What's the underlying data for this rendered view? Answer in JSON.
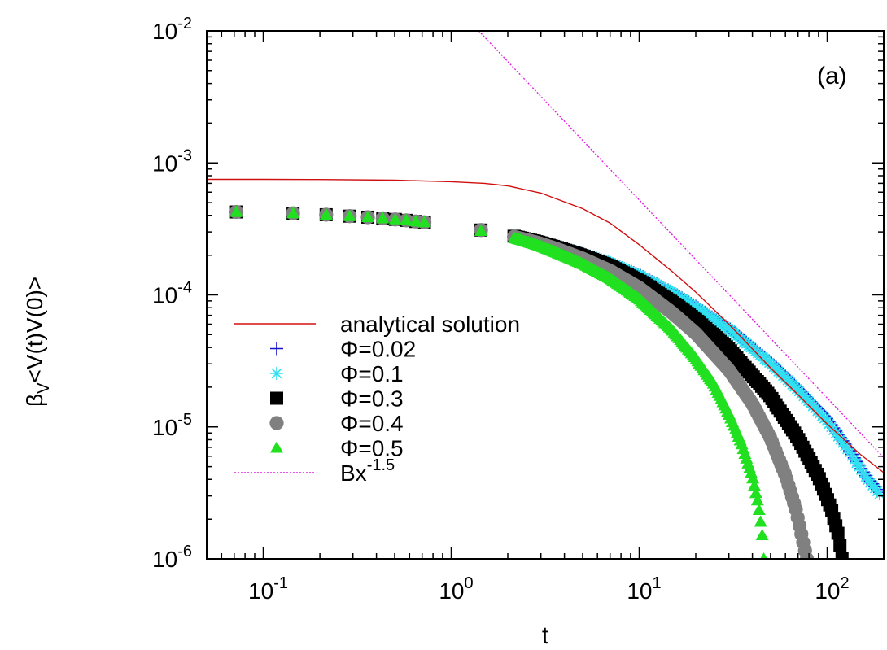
{
  "chart_data": {
    "type": "scatter",
    "scale": {
      "x": "log",
      "y": "log"
    },
    "xlim": [
      0.05,
      200
    ],
    "ylim": [
      1e-06,
      0.01
    ],
    "xlabel": "t",
    "ylabel": {
      "base": "β",
      "sub": "V",
      "rest": "<V(t)V(0)>"
    },
    "panel_label": "(a)",
    "x_ticks": [
      {
        "value": 0.1,
        "base": "10",
        "exp": "-1"
      },
      {
        "value": 1,
        "base": "10",
        "exp": "0"
      },
      {
        "value": 10,
        "base": "10",
        "exp": "1"
      },
      {
        "value": 100,
        "base": "10",
        "exp": "2"
      }
    ],
    "y_ticks": [
      {
        "value": 1e-06,
        "base": "10",
        "exp": "-6"
      },
      {
        "value": 1e-05,
        "base": "10",
        "exp": "-5"
      },
      {
        "value": 0.0001,
        "base": "10",
        "exp": "-4"
      },
      {
        "value": 0.001,
        "base": "10",
        "exp": "-3"
      },
      {
        "value": 0.01,
        "base": "10",
        "exp": "-2"
      }
    ],
    "legend_position": "bottom-left",
    "series": [
      {
        "name": "analytical solution",
        "kind": "line",
        "style": "solid",
        "color": "#d01010",
        "x": [
          0.05,
          0.1,
          0.2,
          0.5,
          1,
          1.5,
          2,
          3,
          5,
          7,
          10,
          15,
          20,
          30,
          50,
          70,
          100,
          150,
          200
        ],
        "y": [
          0.00075,
          0.00075,
          0.000748,
          0.00074,
          0.00072,
          0.0007,
          0.00067,
          0.00059,
          0.00045,
          0.00035,
          0.00024,
          0.00015,
          0.000105,
          6e-05,
          2.8e-05,
          1.75e-05,
          1.05e-05,
          6.2e-06,
          4.5e-06
        ]
      },
      {
        "name": "Φ=0.02",
        "kind": "points",
        "marker": "plus",
        "color": "#1515d0",
        "x": [
          0.072,
          0.144,
          0.216,
          0.288,
          0.36,
          0.432,
          0.504,
          0.576,
          0.648,
          0.72,
          1.44,
          2.16,
          2.88,
          3.6,
          5,
          7,
          10,
          15,
          20,
          30,
          50,
          70,
          100,
          130,
          160,
          190
        ],
        "y": [
          0.000425,
          0.000415,
          0.000405,
          0.000395,
          0.000388,
          0.00038,
          0.000373,
          0.000367,
          0.00036,
          0.000355,
          0.00031,
          0.00028,
          0.000255,
          0.000235,
          0.000205,
          0.000175,
          0.000142,
          0.000105,
          8.2e-05,
          5.6e-05,
          3.1e-05,
          1.95e-05,
          1.15e-05,
          6.8e-06,
          4.3e-06,
          3.2e-06
        ]
      },
      {
        "name": "Φ=0.1",
        "kind": "points",
        "marker": "star",
        "color": "#30e0f0",
        "x": [
          0.072,
          0.144,
          0.216,
          0.288,
          0.36,
          0.432,
          0.504,
          0.576,
          0.648,
          0.72,
          1.44,
          2.16,
          2.88,
          3.6,
          5,
          7,
          10,
          15,
          20,
          30,
          50,
          70,
          100,
          130,
          160,
          190
        ],
        "y": [
          0.000425,
          0.000415,
          0.000405,
          0.000395,
          0.000388,
          0.00038,
          0.000373,
          0.000367,
          0.00036,
          0.000355,
          0.00031,
          0.00028,
          0.000255,
          0.000235,
          0.000205,
          0.000175,
          0.00014,
          0.000104,
          8e-05,
          5.5e-05,
          3e-05,
          1.9e-05,
          1.1e-05,
          6.6e-06,
          4.2e-06,
          3.1e-06
        ]
      },
      {
        "name": "Φ=0.3",
        "kind": "points",
        "marker": "square",
        "color": "#000000",
        "x": [
          0.072,
          0.144,
          0.216,
          0.288,
          0.36,
          0.432,
          0.504,
          0.576,
          0.648,
          0.72,
          1.44,
          2.16,
          2.88,
          3.6,
          5,
          7,
          10,
          15,
          20,
          30,
          50,
          70,
          90,
          105,
          115,
          120
        ],
        "y": [
          0.000425,
          0.000415,
          0.000405,
          0.000395,
          0.000388,
          0.00038,
          0.000373,
          0.000367,
          0.00036,
          0.000355,
          0.00031,
          0.000278,
          0.000252,
          0.00023,
          0.000198,
          0.000165,
          0.000128,
          8.8e-05,
          6.5e-05,
          3.9e-05,
          1.7e-05,
          8.2e-06,
          4.2e-06,
          2.4e-06,
          1.5e-06,
          1e-06
        ]
      },
      {
        "name": "Φ=0.4",
        "kind": "points",
        "marker": "circle",
        "color": "#808080",
        "x": [
          0.072,
          0.144,
          0.216,
          0.288,
          0.36,
          0.432,
          0.504,
          0.576,
          0.648,
          0.72,
          1.44,
          2.16,
          2.88,
          3.6,
          5,
          7,
          10,
          15,
          20,
          30,
          40,
          50,
          60,
          68,
          74,
          78
        ],
        "y": [
          0.000425,
          0.000415,
          0.000405,
          0.000395,
          0.000388,
          0.00038,
          0.000373,
          0.000367,
          0.00036,
          0.000355,
          0.00031,
          0.000275,
          0.000248,
          0.000224,
          0.000188,
          0.000152,
          0.000113,
          7.3e-05,
          5.1e-05,
          2.7e-05,
          1.5e-05,
          8.2e-06,
          4.3e-06,
          2.4e-06,
          1.4e-06,
          1e-06
        ]
      },
      {
        "name": "Φ=0.5",
        "kind": "points",
        "marker": "triangle",
        "color": "#20e020",
        "x": [
          0.072,
          0.144,
          0.216,
          0.288,
          0.36,
          0.432,
          0.504,
          0.576,
          0.648,
          0.72,
          1.44,
          2.16,
          2.88,
          3.6,
          5,
          7,
          10,
          15,
          20,
          25,
          30,
          35,
          40,
          43,
          45,
          46
        ],
        "y": [
          0.000425,
          0.000415,
          0.000405,
          0.000395,
          0.000388,
          0.00038,
          0.000373,
          0.000367,
          0.00036,
          0.000355,
          0.000305,
          0.00027,
          0.000238,
          0.00021,
          0.000172,
          0.000133,
          9.3e-05,
          5.4e-05,
          3.3e-05,
          2.1e-05,
          1.25e-05,
          7.5e-06,
          4.2e-06,
          2.6e-06,
          1.6e-06,
          1e-06
        ]
      },
      {
        "name": "Bx",
        "name_exp": "-1.5",
        "kind": "line",
        "style": "dotted",
        "color": "#e020e0",
        "x": [
          1.4,
          200
        ],
        "y": [
          0.01,
          5.85e-06
        ]
      }
    ]
  }
}
